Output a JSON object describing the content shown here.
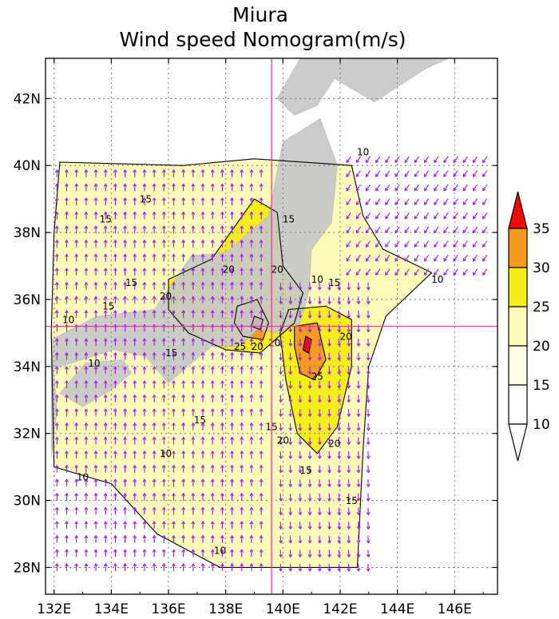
{
  "chart_data": {
    "type": "heatmap",
    "title": "Miura",
    "subtitle": "Wind speed Nomogram(m/s)",
    "variable": "wind speed",
    "units": "m/s",
    "x_ticks": [
      "132E",
      "134E",
      "136E",
      "138E",
      "140E",
      "142E",
      "144E",
      "146E"
    ],
    "x_tick_values": [
      132,
      134,
      136,
      138,
      140,
      142,
      144,
      146
    ],
    "y_ticks": [
      "28N",
      "30N",
      "32N",
      "34N",
      "36N",
      "38N",
      "40N",
      "42N"
    ],
    "y_tick_values": [
      28,
      30,
      32,
      34,
      36,
      38,
      40,
      42
    ],
    "xlim": [
      131.7,
      147.5
    ],
    "ylim": [
      27.2,
      43.2
    ],
    "grid": true,
    "crosshair": {
      "lon": 139.6,
      "lat": 35.2,
      "color": "#ff3399"
    },
    "colorbar": {
      "levels": [
        10,
        15,
        20,
        25,
        30,
        35
      ],
      "level_labels": [
        "10",
        "15",
        "20",
        "25",
        "30",
        "35"
      ],
      "colors": [
        "#ffffff",
        "#fefde6",
        "#fdfaba",
        "#f6ee1a",
        "#f39a1f",
        "#f20b05"
      ],
      "extend": "both",
      "placement": "right"
    },
    "contour_levels": [
      10,
      15,
      20,
      25,
      30
    ],
    "contour_labels": [
      {
        "text": "10",
        "lon": 142.8,
        "lat": 40.3
      },
      {
        "text": "15",
        "lon": 135.2,
        "lat": 38.9
      },
      {
        "text": "15",
        "lon": 133.8,
        "lat": 38.3
      },
      {
        "text": "15",
        "lon": 140.2,
        "lat": 38.3
      },
      {
        "text": "20",
        "lon": 138.1,
        "lat": 36.8
      },
      {
        "text": "20",
        "lon": 139.8,
        "lat": 36.8
      },
      {
        "text": "15",
        "lon": 134.7,
        "lat": 36.4
      },
      {
        "text": "10",
        "lon": 141.2,
        "lat": 36.5
      },
      {
        "text": "15",
        "lon": 141.8,
        "lat": 36.4
      },
      {
        "text": "10",
        "lon": 145.4,
        "lat": 36.5
      },
      {
        "text": "20",
        "lon": 135.9,
        "lat": 36.0
      },
      {
        "text": "15",
        "lon": 133.9,
        "lat": 35.7
      },
      {
        "text": "10",
        "lon": 132.5,
        "lat": 35.3
      },
      {
        "text": "15",
        "lon": 136.1,
        "lat": 34.3
      },
      {
        "text": "25",
        "lon": 138.5,
        "lat": 34.5
      },
      {
        "text": "20",
        "lon": 139.1,
        "lat": 34.5
      },
      {
        "text": "10",
        "lon": 139.7,
        "lat": 34.6
      },
      {
        "text": "20",
        "lon": 142.2,
        "lat": 34.8
      },
      {
        "text": "10",
        "lon": 133.4,
        "lat": 34.0
      },
      {
        "text": "25",
        "lon": 141.2,
        "lat": 33.6
      },
      {
        "text": "15",
        "lon": 137.1,
        "lat": 32.3
      },
      {
        "text": "15",
        "lon": 139.6,
        "lat": 32.1
      },
      {
        "text": "20",
        "lon": 140.0,
        "lat": 31.7
      },
      {
        "text": "20",
        "lon": 141.8,
        "lat": 31.6
      },
      {
        "text": "10",
        "lon": 135.9,
        "lat": 31.3
      },
      {
        "text": "15",
        "lon": 140.8,
        "lat": 30.8
      },
      {
        "text": "10",
        "lon": 133.0,
        "lat": 30.6
      },
      {
        "text": "15",
        "lon": 142.4,
        "lat": 29.9
      },
      {
        "text": "10",
        "lon": 137.8,
        "lat": 28.4
      }
    ],
    "fill_regions": [
      {
        "level": 15,
        "polygon": [
          [
            132.2,
            40.1
          ],
          [
            136.5,
            40.0
          ],
          [
            139.0,
            40.2
          ],
          [
            142.4,
            40.0
          ],
          [
            142.8,
            38.5
          ],
          [
            143.5,
            37.5
          ],
          [
            145.2,
            36.8
          ],
          [
            143.6,
            35.5
          ],
          [
            143.0,
            34.0
          ],
          [
            142.8,
            31.5
          ],
          [
            142.6,
            28.0
          ],
          [
            137.8,
            28.0
          ],
          [
            135.6,
            29.0
          ],
          [
            134.0,
            30.5
          ],
          [
            132.0,
            31.0
          ],
          [
            131.9,
            35.0
          ],
          [
            132.0,
            38.0
          ]
        ]
      },
      {
        "level": 20,
        "polygon": [
          [
            136.0,
            36.6
          ],
          [
            137.5,
            37.2
          ],
          [
            139.0,
            39.0
          ],
          [
            139.8,
            38.6
          ],
          [
            140.0,
            37.0
          ],
          [
            140.7,
            36.2
          ],
          [
            140.4,
            35.3
          ],
          [
            139.2,
            34.4
          ],
          [
            138.0,
            34.5
          ],
          [
            136.7,
            35.0
          ],
          [
            136.0,
            35.7
          ]
        ]
      },
      {
        "level": 20,
        "polygon": [
          [
            140.2,
            35.7
          ],
          [
            141.5,
            35.8
          ],
          [
            142.4,
            35.4
          ],
          [
            142.4,
            34.0
          ],
          [
            141.9,
            32.2
          ],
          [
            141.2,
            31.4
          ],
          [
            140.5,
            32.0
          ],
          [
            140.1,
            33.6
          ],
          [
            139.9,
            35.0
          ]
        ]
      },
      {
        "level": 25,
        "polygon": [
          [
            138.4,
            35.8
          ],
          [
            139.1,
            36.0
          ],
          [
            139.5,
            35.3
          ],
          [
            139.3,
            34.8
          ],
          [
            138.6,
            34.9
          ],
          [
            138.3,
            35.3
          ]
        ]
      },
      {
        "level": 25,
        "polygon": [
          [
            140.4,
            35.2
          ],
          [
            141.2,
            35.3
          ],
          [
            141.5,
            34.2
          ],
          [
            141.1,
            33.6
          ],
          [
            140.6,
            33.8
          ],
          [
            140.4,
            34.6
          ]
        ]
      },
      {
        "level": 30,
        "polygon": [
          [
            139.0,
            35.5
          ],
          [
            139.3,
            35.4
          ],
          [
            139.2,
            35.1
          ],
          [
            138.9,
            35.2
          ]
        ]
      },
      {
        "level": 30,
        "polygon": [
          [
            140.8,
            34.9
          ],
          [
            141.0,
            34.8
          ],
          [
            140.9,
            34.4
          ],
          [
            140.7,
            34.5
          ]
        ]
      }
    ]
  },
  "vector_field": {
    "color": "#9b19f5",
    "variable": "wind direction",
    "regions": [
      {
        "name": "west-southerly",
        "lon_min": 132.0,
        "lon_max": 139.4,
        "lat_min": 28.0,
        "lat_max": 40.0,
        "u": 0.0,
        "v": 1.0
      },
      {
        "name": "east-northerly",
        "lon_min": 139.7,
        "lon_max": 143.2,
        "lat_min": 28.0,
        "lat_max": 36.6,
        "u": 0.05,
        "v": -1.0
      },
      {
        "name": "northeast-pacific",
        "lon_min": 142.0,
        "lon_max": 147.2,
        "lat_min": 36.6,
        "lat_max": 40.2,
        "u": -0.55,
        "v": -0.8
      }
    ]
  },
  "land": {
    "color": "#c8c8c8",
    "areas": [
      {
        "name": "honshu",
        "polygon": [
          [
            131.9,
            34.8
          ],
          [
            133.5,
            35.5
          ],
          [
            135.5,
            35.7
          ],
          [
            136.8,
            37.3
          ],
          [
            138.0,
            37.4
          ],
          [
            139.5,
            38.5
          ],
          [
            140.0,
            40.7
          ],
          [
            141.3,
            41.4
          ],
          [
            141.9,
            40.0
          ],
          [
            141.7,
            38.3
          ],
          [
            141.0,
            37.5
          ],
          [
            140.9,
            36.2
          ],
          [
            140.6,
            35.3
          ],
          [
            139.8,
            35.0
          ],
          [
            139.1,
            35.1
          ],
          [
            138.5,
            34.6
          ],
          [
            137.5,
            34.6
          ],
          [
            136.8,
            34.1
          ],
          [
            136.0,
            33.5
          ],
          [
            135.2,
            34.3
          ],
          [
            134.1,
            34.5
          ],
          [
            132.6,
            34.1
          ],
          [
            131.9,
            33.9
          ]
        ]
      },
      {
        "name": "shikoku",
        "polygon": [
          [
            132.2,
            33.2
          ],
          [
            133.1,
            34.1
          ],
          [
            134.4,
            34.2
          ],
          [
            134.7,
            33.8
          ],
          [
            134.0,
            33.3
          ],
          [
            133.0,
            32.8
          ]
        ]
      },
      {
        "name": "kyushu",
        "polygon": [
          [
            131.9,
            34.3
          ],
          [
            131.9,
            31.3
          ],
          [
            132.1,
            32.7
          ],
          [
            132.0,
            33.8
          ]
        ]
      },
      {
        "name": "hokkaido",
        "polygon": [
          [
            139.8,
            42.0
          ],
          [
            140.4,
            41.5
          ],
          [
            141.2,
            41.8
          ],
          [
            141.8,
            42.6
          ],
          [
            143.2,
            41.9
          ],
          [
            145.0,
            42.9
          ],
          [
            145.8,
            43.2
          ],
          [
            140.6,
            43.2
          ]
        ]
      }
    ]
  }
}
